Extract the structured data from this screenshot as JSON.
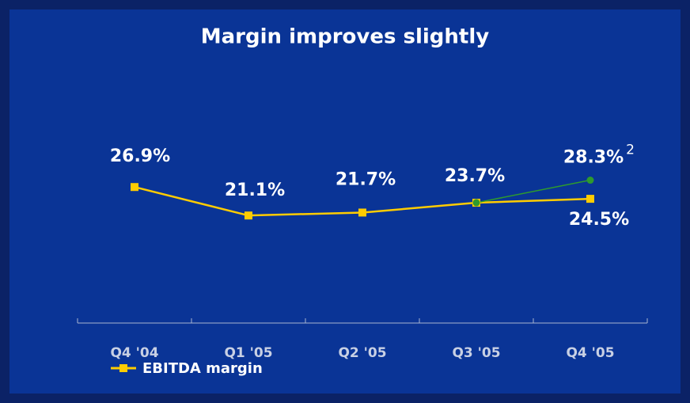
{
  "chart_data": {
    "type": "line",
    "title": "Margin improves slightly",
    "categories": [
      "Q4 '04",
      "Q1 '05",
      "Q2 '05",
      "Q3 '05",
      "Q4 '05"
    ],
    "series": [
      {
        "name": "EBITDA margin",
        "color": "#ffcc00",
        "values": [
          26.9,
          21.1,
          21.7,
          23.7,
          24.5
        ],
        "value_labels": [
          "26.9%",
          "21.1%",
          "21.7%",
          "23.7%",
          "24.5%"
        ]
      },
      {
        "color": "#2e9a2e",
        "values": [
          null,
          null,
          null,
          23.7,
          28.3
        ],
        "value_labels": [
          null,
          null,
          null,
          null,
          "28.3%"
        ],
        "annotation": "2"
      }
    ],
    "ylim": [
      0,
      30
    ],
    "legend": "bottom-left"
  }
}
